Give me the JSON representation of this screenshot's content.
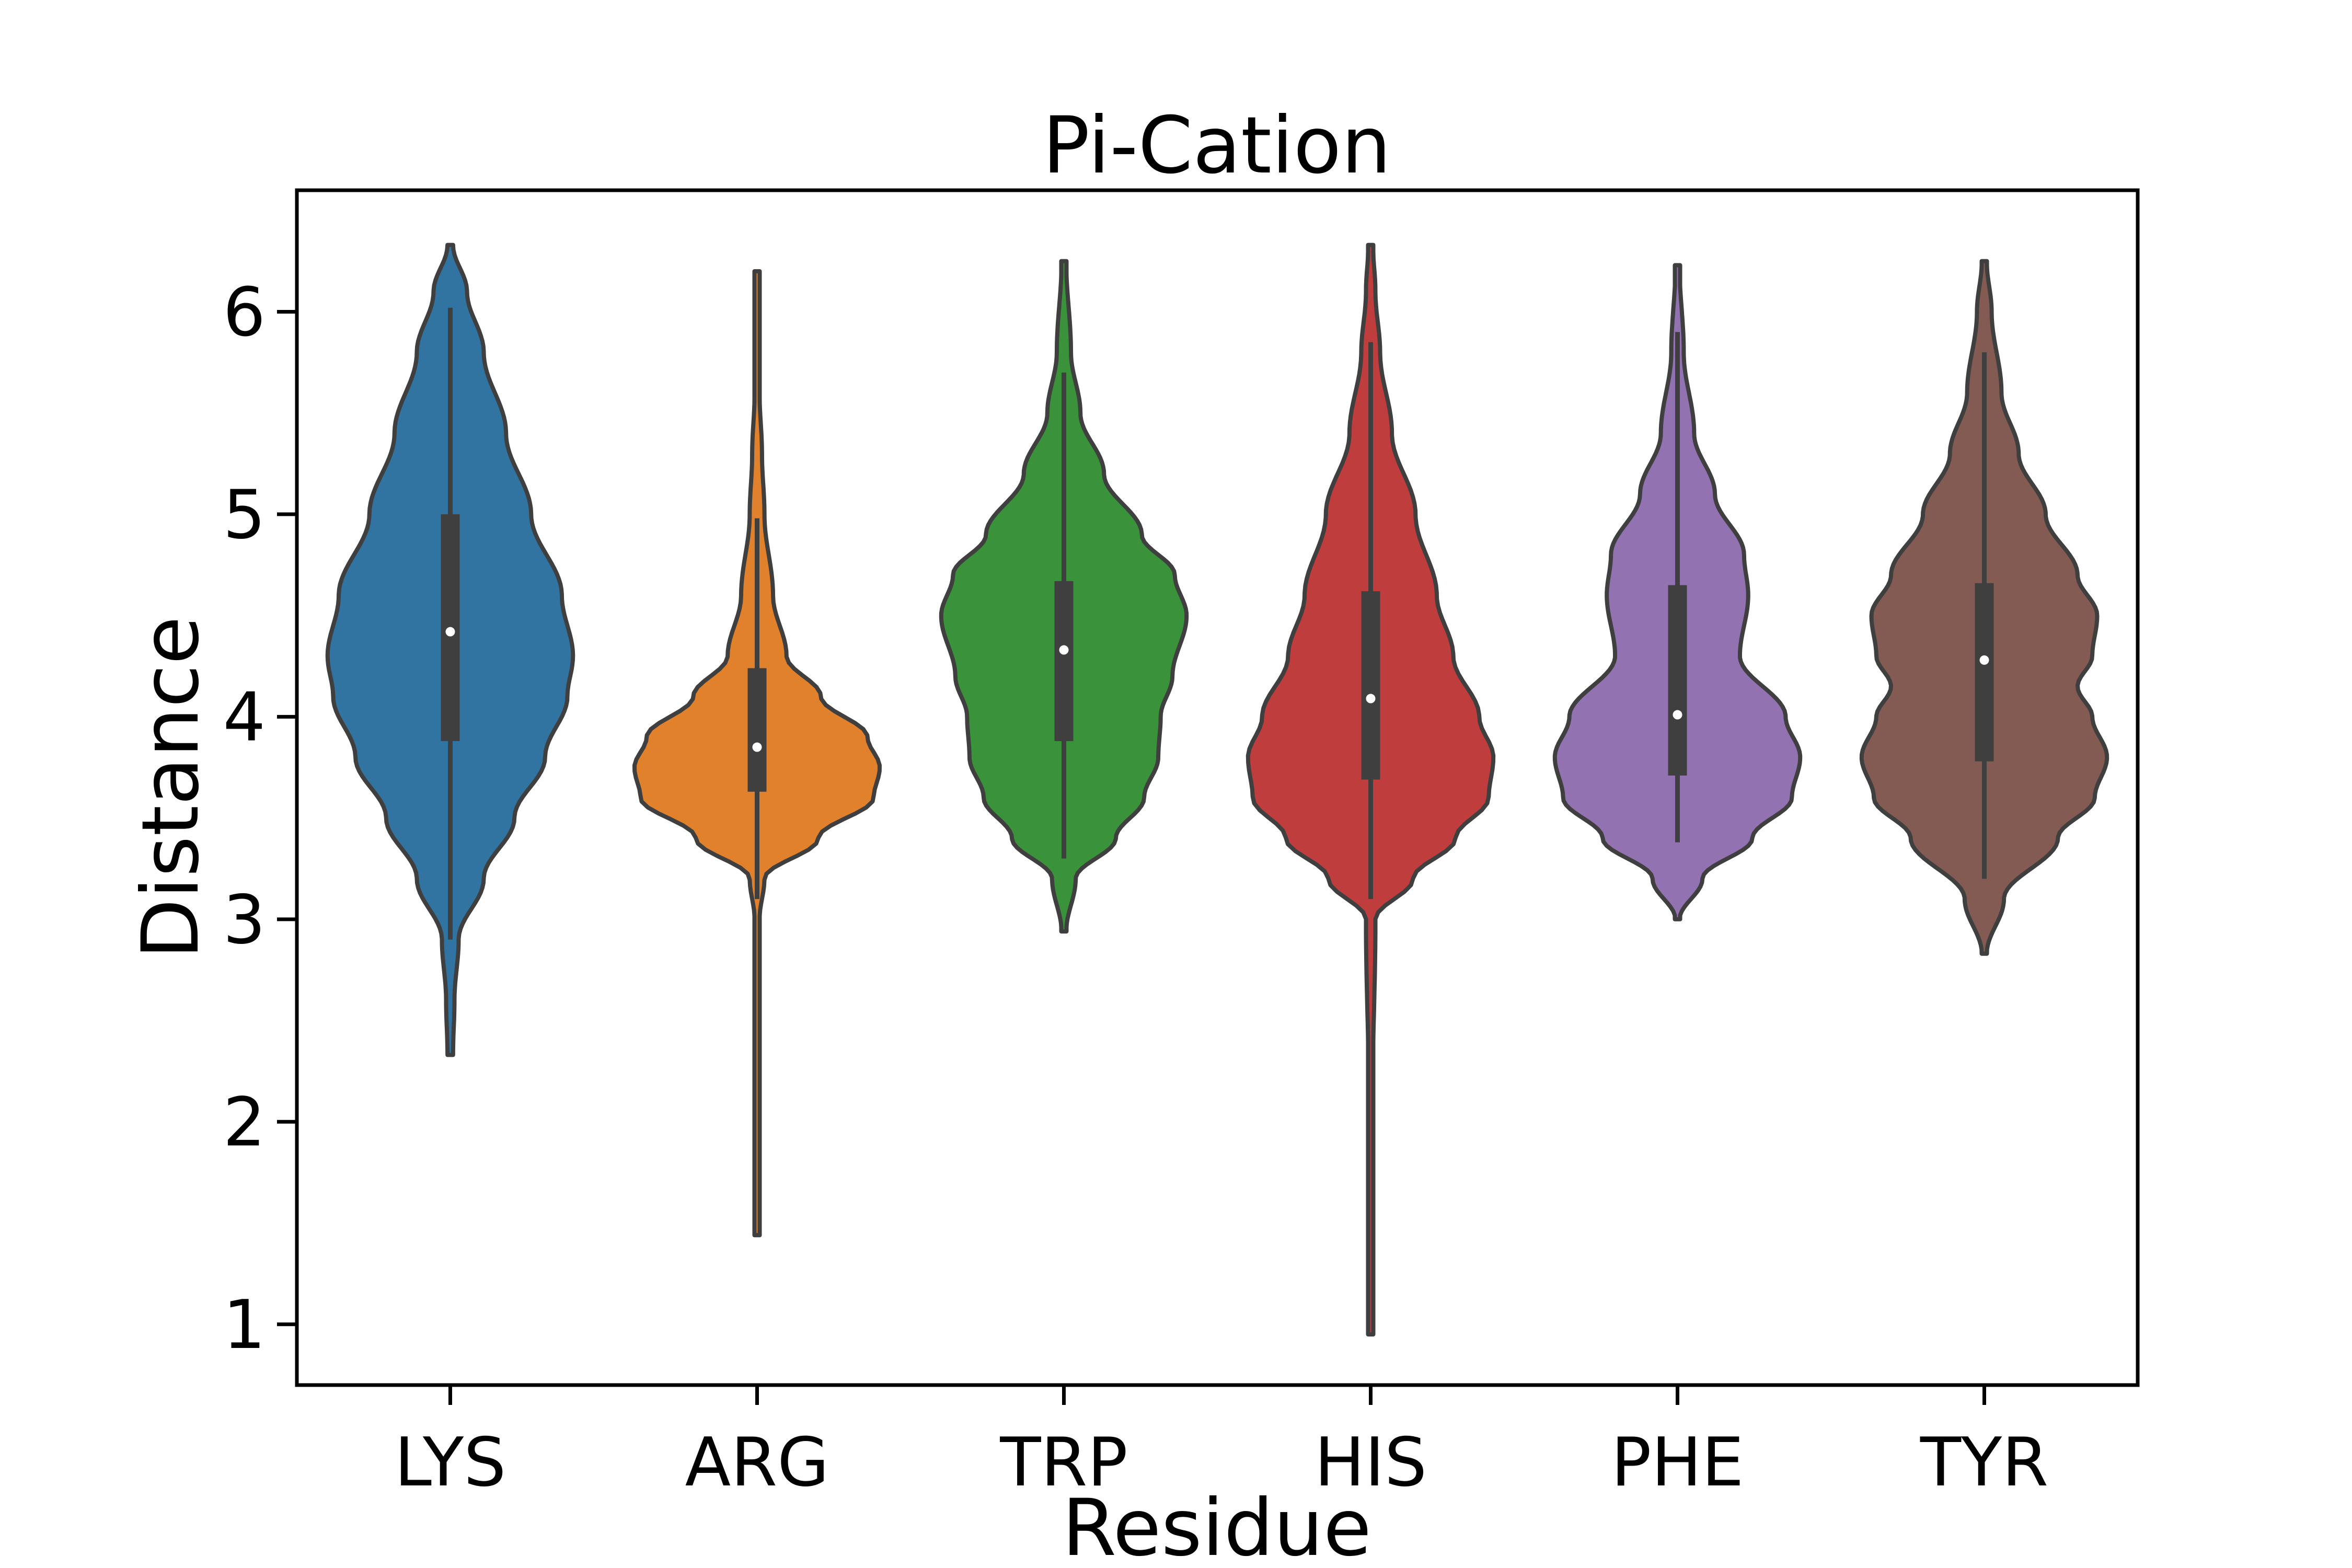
{
  "chart_data": {
    "type": "violin",
    "title": "Pi-Cation",
    "xlabel": "Residue",
    "ylabel": "Distance",
    "ylim": [
      0.7,
      6.6
    ],
    "yticks": [
      1,
      2,
      3,
      4,
      5,
      6
    ],
    "categories": [
      "LYS",
      "ARG",
      "TRP",
      "HIS",
      "PHE",
      "TYR"
    ],
    "legend": "none",
    "grid": false,
    "colors": [
      "#3274a1",
      "#e1812c",
      "#3a923a",
      "#c03d3e",
      "#9372b2",
      "#845b53"
    ],
    "series": [
      {
        "category": "LYS",
        "min": 2.33,
        "q1": 3.88,
        "median": 4.42,
        "q3": 5.0,
        "max": 6.33,
        "whisker_low": 2.9,
        "whisker_high": 6.02,
        "density": [
          [
            2.33,
            0.01
          ],
          [
            2.6,
            0.015
          ],
          [
            2.9,
            0.03
          ],
          [
            3.2,
            0.12
          ],
          [
            3.5,
            0.23
          ],
          [
            3.8,
            0.34
          ],
          [
            4.1,
            0.42
          ],
          [
            4.3,
            0.44
          ],
          [
            4.6,
            0.4
          ],
          [
            5.0,
            0.29
          ],
          [
            5.4,
            0.2
          ],
          [
            5.8,
            0.12
          ],
          [
            6.1,
            0.06
          ],
          [
            6.33,
            0.01
          ]
        ]
      },
      {
        "category": "ARG",
        "min": 1.44,
        "q1": 3.63,
        "median": 3.85,
        "q3": 4.24,
        "max": 6.2,
        "whisker_low": 3.1,
        "whisker_high": 4.98,
        "density": [
          [
            1.44,
            0.008
          ],
          [
            2.0,
            0.008
          ],
          [
            2.6,
            0.01
          ],
          [
            3.0,
            0.02
          ],
          [
            3.2,
            0.06
          ],
          [
            3.4,
            0.5
          ],
          [
            3.6,
            0.95
          ],
          [
            3.75,
            1.0
          ],
          [
            3.9,
            0.9
          ],
          [
            4.1,
            0.52
          ],
          [
            4.3,
            0.24
          ],
          [
            4.6,
            0.13
          ],
          [
            5.0,
            0.06
          ],
          [
            5.3,
            0.04
          ],
          [
            5.6,
            0.02
          ],
          [
            6.0,
            0.015
          ],
          [
            6.2,
            0.01
          ]
        ]
      },
      {
        "category": "TRP",
        "min": 2.94,
        "q1": 3.88,
        "median": 4.33,
        "q3": 4.67,
        "max": 6.25,
        "whisker_low": 3.3,
        "whisker_high": 5.7,
        "density": [
          [
            2.94,
            0.01
          ],
          [
            3.2,
            0.05
          ],
          [
            3.4,
            0.22
          ],
          [
            3.6,
            0.34
          ],
          [
            3.8,
            0.4
          ],
          [
            4.0,
            0.41
          ],
          [
            4.2,
            0.46
          ],
          [
            4.5,
            0.52
          ],
          [
            4.7,
            0.47
          ],
          [
            4.9,
            0.33
          ],
          [
            5.2,
            0.17
          ],
          [
            5.5,
            0.07
          ],
          [
            5.8,
            0.03
          ],
          [
            6.25,
            0.01
          ]
        ]
      },
      {
        "category": "HIS",
        "min": 0.95,
        "q1": 3.69,
        "median": 4.09,
        "q3": 4.62,
        "max": 6.33,
        "whisker_low": 3.1,
        "whisker_high": 5.85,
        "density": [
          [
            0.95,
            0.005
          ],
          [
            2.0,
            0.006
          ],
          [
            3.0,
            0.02
          ],
          [
            3.2,
            0.18
          ],
          [
            3.4,
            0.36
          ],
          [
            3.6,
            0.5
          ],
          [
            3.8,
            0.52
          ],
          [
            4.0,
            0.46
          ],
          [
            4.3,
            0.35
          ],
          [
            4.6,
            0.28
          ],
          [
            5.0,
            0.19
          ],
          [
            5.4,
            0.09
          ],
          [
            5.8,
            0.04
          ],
          [
            6.1,
            0.02
          ],
          [
            6.33,
            0.01
          ]
        ]
      },
      {
        "category": "PHE",
        "min": 3.0,
        "q1": 3.71,
        "median": 4.01,
        "q3": 4.65,
        "max": 6.23,
        "whisker_low": 3.38,
        "whisker_high": 5.9,
        "density": [
          [
            3.0,
            0.01
          ],
          [
            3.2,
            0.12
          ],
          [
            3.4,
            0.36
          ],
          [
            3.6,
            0.55
          ],
          [
            3.8,
            0.59
          ],
          [
            4.0,
            0.52
          ],
          [
            4.3,
            0.3
          ],
          [
            4.6,
            0.34
          ],
          [
            4.8,
            0.32
          ],
          [
            5.1,
            0.18
          ],
          [
            5.4,
            0.08
          ],
          [
            5.8,
            0.03
          ],
          [
            6.23,
            0.01
          ]
        ]
      },
      {
        "category": "TYR",
        "min": 2.83,
        "q1": 3.78,
        "median": 4.28,
        "q3": 4.66,
        "max": 6.25,
        "whisker_low": 3.2,
        "whisker_high": 5.8,
        "density": [
          [
            2.83,
            0.01
          ],
          [
            3.1,
            0.08
          ],
          [
            3.4,
            0.3
          ],
          [
            3.6,
            0.45
          ],
          [
            3.8,
            0.5
          ],
          [
            4.0,
            0.44
          ],
          [
            4.15,
            0.38
          ],
          [
            4.3,
            0.44
          ],
          [
            4.5,
            0.46
          ],
          [
            4.7,
            0.38
          ],
          [
            5.0,
            0.25
          ],
          [
            5.3,
            0.14
          ],
          [
            5.6,
            0.07
          ],
          [
            6.0,
            0.03
          ],
          [
            6.25,
            0.01
          ]
        ]
      }
    ]
  }
}
